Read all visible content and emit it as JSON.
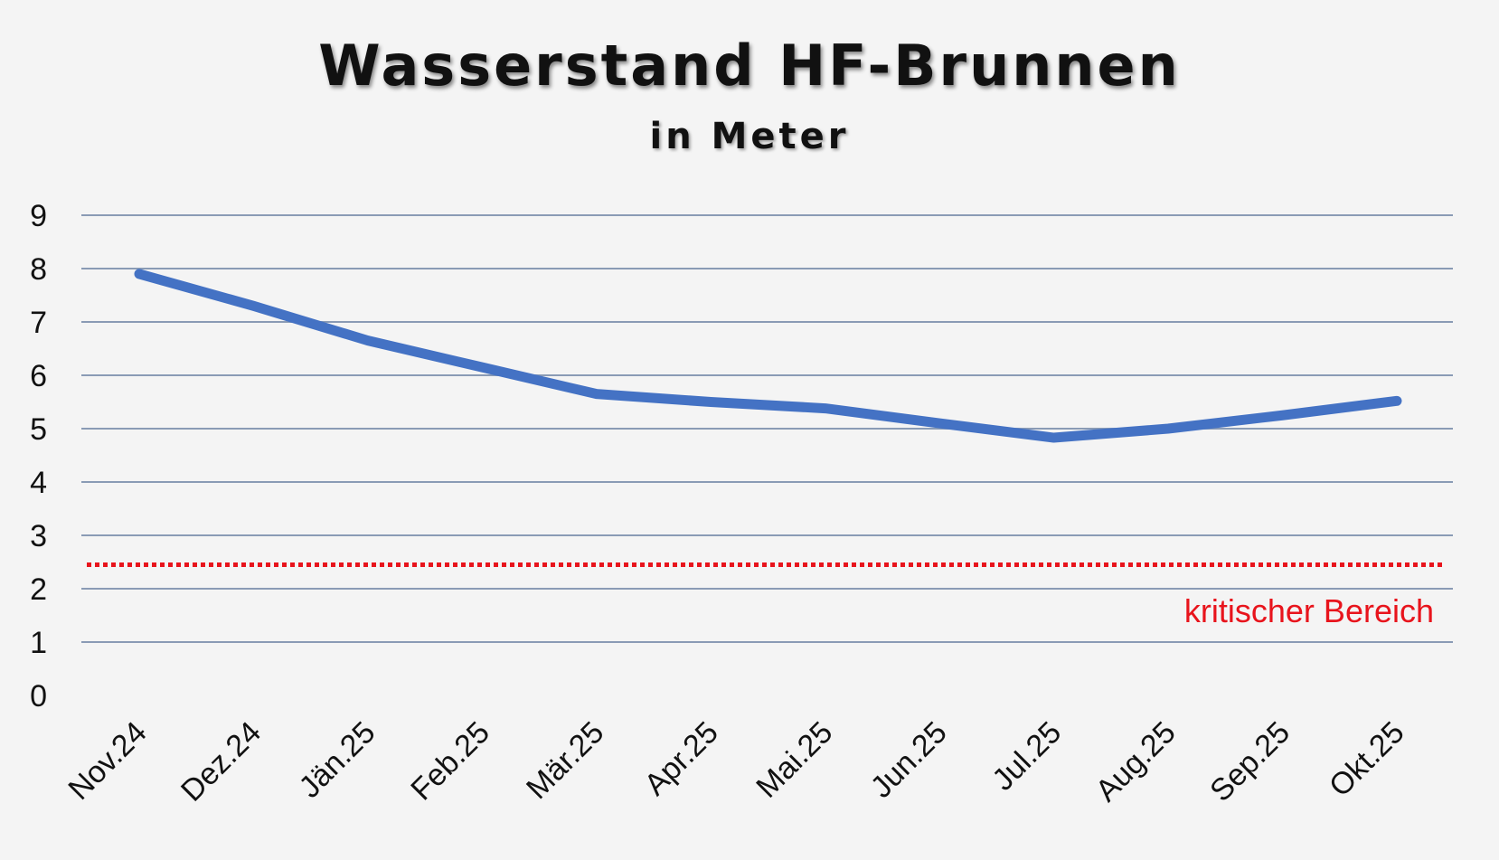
{
  "chart_data": {
    "type": "line",
    "title": "Wasserstand HF-Brunnen",
    "subtitle": "in Meter",
    "categories": [
      "Nov.24",
      "Dez.24",
      "Jän.25",
      "Feb.25",
      "Mär.25",
      "Apr.25",
      "Mai.25",
      "Jun.25",
      "Jul.25",
      "Aug.25",
      "Sep.25",
      "Okt.25"
    ],
    "series": [
      {
        "color": "#4472c4",
        "values": [
          7.9,
          7.3,
          6.65,
          6.15,
          5.65,
          5.5,
          5.38,
          5.1,
          4.83,
          5.0,
          5.25,
          5.52
        ]
      }
    ],
    "ylim": [
      0,
      9
    ],
    "yticks": [
      0,
      1,
      2,
      3,
      4,
      5,
      6,
      7,
      8,
      9
    ],
    "grid": true,
    "threshold": {
      "value": 2.45,
      "label": "kritischer Bereich",
      "color": "#e8141c",
      "style": "dotted"
    }
  }
}
